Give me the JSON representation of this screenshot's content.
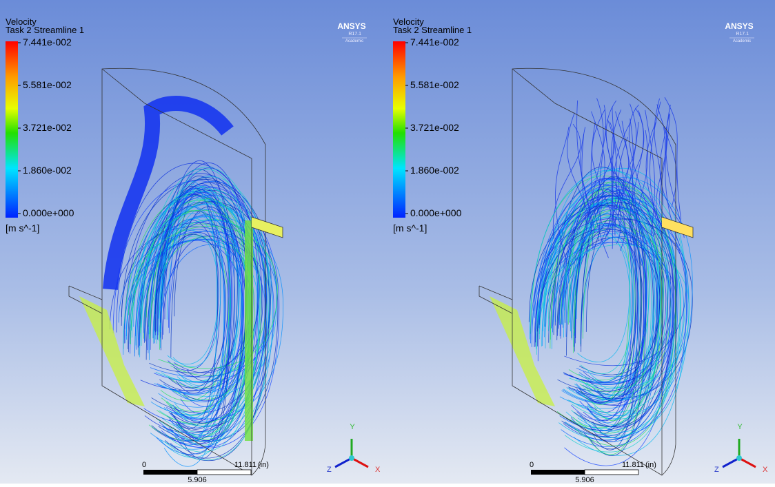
{
  "panels": [
    {
      "legend": {
        "title": "Velocity",
        "subtitle": "Task 2 Streamline 1",
        "ticks": [
          "7.441e-002",
          "5.581e-002",
          "3.721e-002",
          "1.860e-002",
          "0.000e+000"
        ],
        "unit": "[m s^-1]"
      },
      "logo": {
        "brand": "ANSYS",
        "version": "R17.1",
        "edition": "Academic"
      },
      "scale": {
        "start": "0",
        "end": "11.811",
        "unit": "(in)",
        "mid": "5.906"
      },
      "triad": {
        "x": "X",
        "y": "Y",
        "z": "Z"
      }
    },
    {
      "legend": {
        "title": "Velocity",
        "subtitle": "Task 2 Streamline 1",
        "ticks": [
          "7.441e-002",
          "5.581e-002",
          "3.721e-002",
          "1.860e-002",
          "0.000e+000"
        ],
        "unit": "[m s^-1]"
      },
      "logo": {
        "brand": "ANSYS",
        "version": "R17.1",
        "edition": "Academic"
      },
      "scale": {
        "start": "0",
        "end": "11.811",
        "unit": "(in)",
        "mid": "5.906"
      },
      "triad": {
        "x": "X",
        "y": "Y",
        "z": "Z"
      }
    }
  ]
}
